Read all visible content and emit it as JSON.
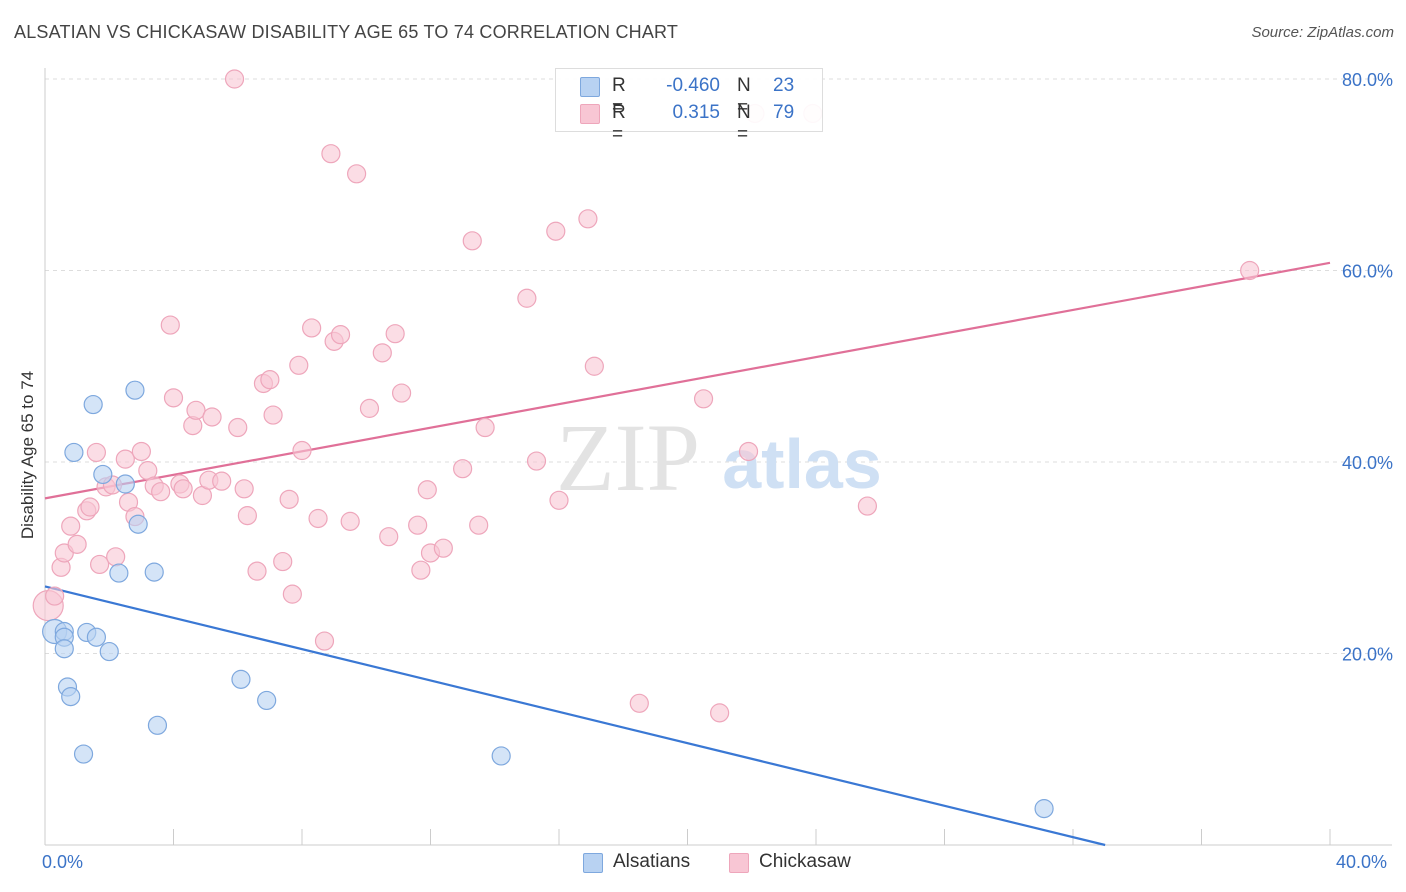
{
  "title": "ALSATIAN VS CHICKASAW DISABILITY AGE 65 TO 74 CORRELATION CHART",
  "source": "Source: ZipAtlas.com",
  "watermark": {
    "zip": "ZIP",
    "atlas": "atlas"
  },
  "legend": {
    "rows": [
      {
        "r_label": "R =",
        "r_value": "-0.460",
        "n_label": "N =",
        "n_value": "23"
      },
      {
        "r_label": "R =",
        "r_value": "0.315",
        "n_label": "N =",
        "n_value": "79"
      }
    ]
  },
  "bottom_legend": [
    "Alsatians",
    "Chickasaw"
  ],
  "x_tick_labels": {
    "left": "0.0%",
    "right": "40.0%"
  },
  "colors": {
    "alsatians_fill": "#b8d2f2",
    "alsatians_stroke": "#7ea8de",
    "alsatians_line": "#3a78d4",
    "chickasaw_fill": "#f8c6d4",
    "chickasaw_stroke": "#eea6bb",
    "chickasaw_line": "#e07098",
    "axis_label": "#3b73c7",
    "grid": "#dddddd"
  },
  "chart_data": {
    "type": "scatter",
    "title": "ALSATIAN VS CHICKASAW DISABILITY AGE 65 TO 74 CORRELATION CHART",
    "xlabel": "",
    "ylabel": "Disability Age 65 to 74",
    "xlim": [
      0,
      40
    ],
    "ylim": [
      0,
      80
    ],
    "x_unit": "%",
    "y_unit": "%",
    "y_ticks": [
      "20.0%",
      "40.0%",
      "60.0%",
      "80.0%"
    ],
    "y_tick_values": [
      20,
      40,
      60,
      80
    ],
    "grid": true,
    "legend_position": "top-center",
    "series": [
      {
        "name": "Alsatians",
        "points": [
          [
            0.3,
            22.3
          ],
          [
            0.6,
            22.3
          ],
          [
            0.6,
            21.7
          ],
          [
            0.6,
            20.5
          ],
          [
            0.7,
            16.5
          ],
          [
            0.8,
            15.5
          ],
          [
            0.9,
            41.0
          ],
          [
            1.2,
            9.5
          ],
          [
            1.3,
            22.2
          ],
          [
            1.5,
            46.0
          ],
          [
            1.6,
            21.7
          ],
          [
            1.8,
            38.7
          ],
          [
            2.0,
            20.2
          ],
          [
            2.3,
            28.4
          ],
          [
            2.5,
            37.7
          ],
          [
            2.8,
            47.5
          ],
          [
            2.9,
            33.5
          ],
          [
            3.4,
            28.5
          ],
          [
            3.5,
            12.5
          ],
          [
            6.1,
            17.3
          ],
          [
            6.9,
            15.1
          ],
          [
            14.2,
            9.3
          ],
          [
            31.1,
            3.8
          ]
        ],
        "trend": [
          [
            0,
            27.0
          ],
          [
            33,
            0.0
          ]
        ]
      },
      {
        "name": "Chickasaw",
        "points": [
          [
            0.1,
            25.0
          ],
          [
            0.3,
            26.0
          ],
          [
            0.5,
            29.0
          ],
          [
            0.6,
            30.5
          ],
          [
            0.8,
            33.3
          ],
          [
            1.0,
            31.4
          ],
          [
            1.3,
            34.9
          ],
          [
            1.4,
            35.3
          ],
          [
            1.6,
            41.0
          ],
          [
            1.7,
            29.3
          ],
          [
            1.9,
            37.4
          ],
          [
            2.1,
            37.6
          ],
          [
            2.2,
            30.1
          ],
          [
            2.5,
            40.3
          ],
          [
            2.6,
            35.8
          ],
          [
            2.8,
            34.3
          ],
          [
            3.0,
            41.1
          ],
          [
            3.2,
            39.1
          ],
          [
            3.4,
            37.5
          ],
          [
            3.6,
            36.9
          ],
          [
            3.9,
            54.3
          ],
          [
            4.0,
            46.7
          ],
          [
            4.2,
            37.7
          ],
          [
            4.3,
            37.2
          ],
          [
            4.6,
            43.8
          ],
          [
            4.7,
            45.4
          ],
          [
            4.9,
            36.5
          ],
          [
            5.1,
            38.1
          ],
          [
            5.2,
            44.7
          ],
          [
            5.5,
            38.0
          ],
          [
            6.0,
            43.6
          ],
          [
            6.2,
            37.2
          ],
          [
            6.3,
            34.4
          ],
          [
            6.6,
            28.6
          ],
          [
            6.8,
            48.2
          ],
          [
            7.0,
            48.6
          ],
          [
            7.1,
            44.9
          ],
          [
            7.4,
            29.6
          ],
          [
            7.6,
            36.1
          ],
          [
            7.7,
            26.2
          ],
          [
            7.9,
            50.1
          ],
          [
            8.0,
            41.2
          ],
          [
            8.3,
            54.0
          ],
          [
            8.5,
            34.1
          ],
          [
            8.7,
            21.3
          ],
          [
            8.9,
            72.2
          ],
          [
            9.0,
            52.6
          ],
          [
            9.2,
            53.3
          ],
          [
            9.5,
            33.8
          ],
          [
            9.7,
            70.1
          ],
          [
            10.1,
            45.6
          ],
          [
            10.5,
            51.4
          ],
          [
            10.7,
            32.2
          ],
          [
            10.9,
            53.4
          ],
          [
            11.1,
            47.2
          ],
          [
            11.6,
            33.4
          ],
          [
            11.7,
            28.7
          ],
          [
            11.9,
            37.1
          ],
          [
            12.0,
            30.5
          ],
          [
            12.4,
            31.0
          ],
          [
            13.0,
            39.3
          ],
          [
            13.3,
            63.1
          ],
          [
            13.5,
            33.4
          ],
          [
            13.7,
            43.6
          ],
          [
            15.0,
            57.1
          ],
          [
            15.3,
            40.1
          ],
          [
            15.9,
            64.1
          ],
          [
            16.0,
            36.0
          ],
          [
            16.9,
            65.4
          ],
          [
            17.1,
            50.0
          ],
          [
            18.5,
            14.8
          ],
          [
            20.5,
            46.6
          ],
          [
            21.0,
            13.8
          ],
          [
            21.9,
            41.1
          ],
          [
            25.6,
            35.4
          ],
          [
            37.5,
            60.0
          ],
          [
            5.9,
            80.0
          ],
          [
            22.1,
            76.4
          ],
          [
            23.9,
            76.4
          ]
        ],
        "trend": [
          [
            0,
            36.2
          ],
          [
            40,
            60.8
          ]
        ]
      }
    ]
  }
}
